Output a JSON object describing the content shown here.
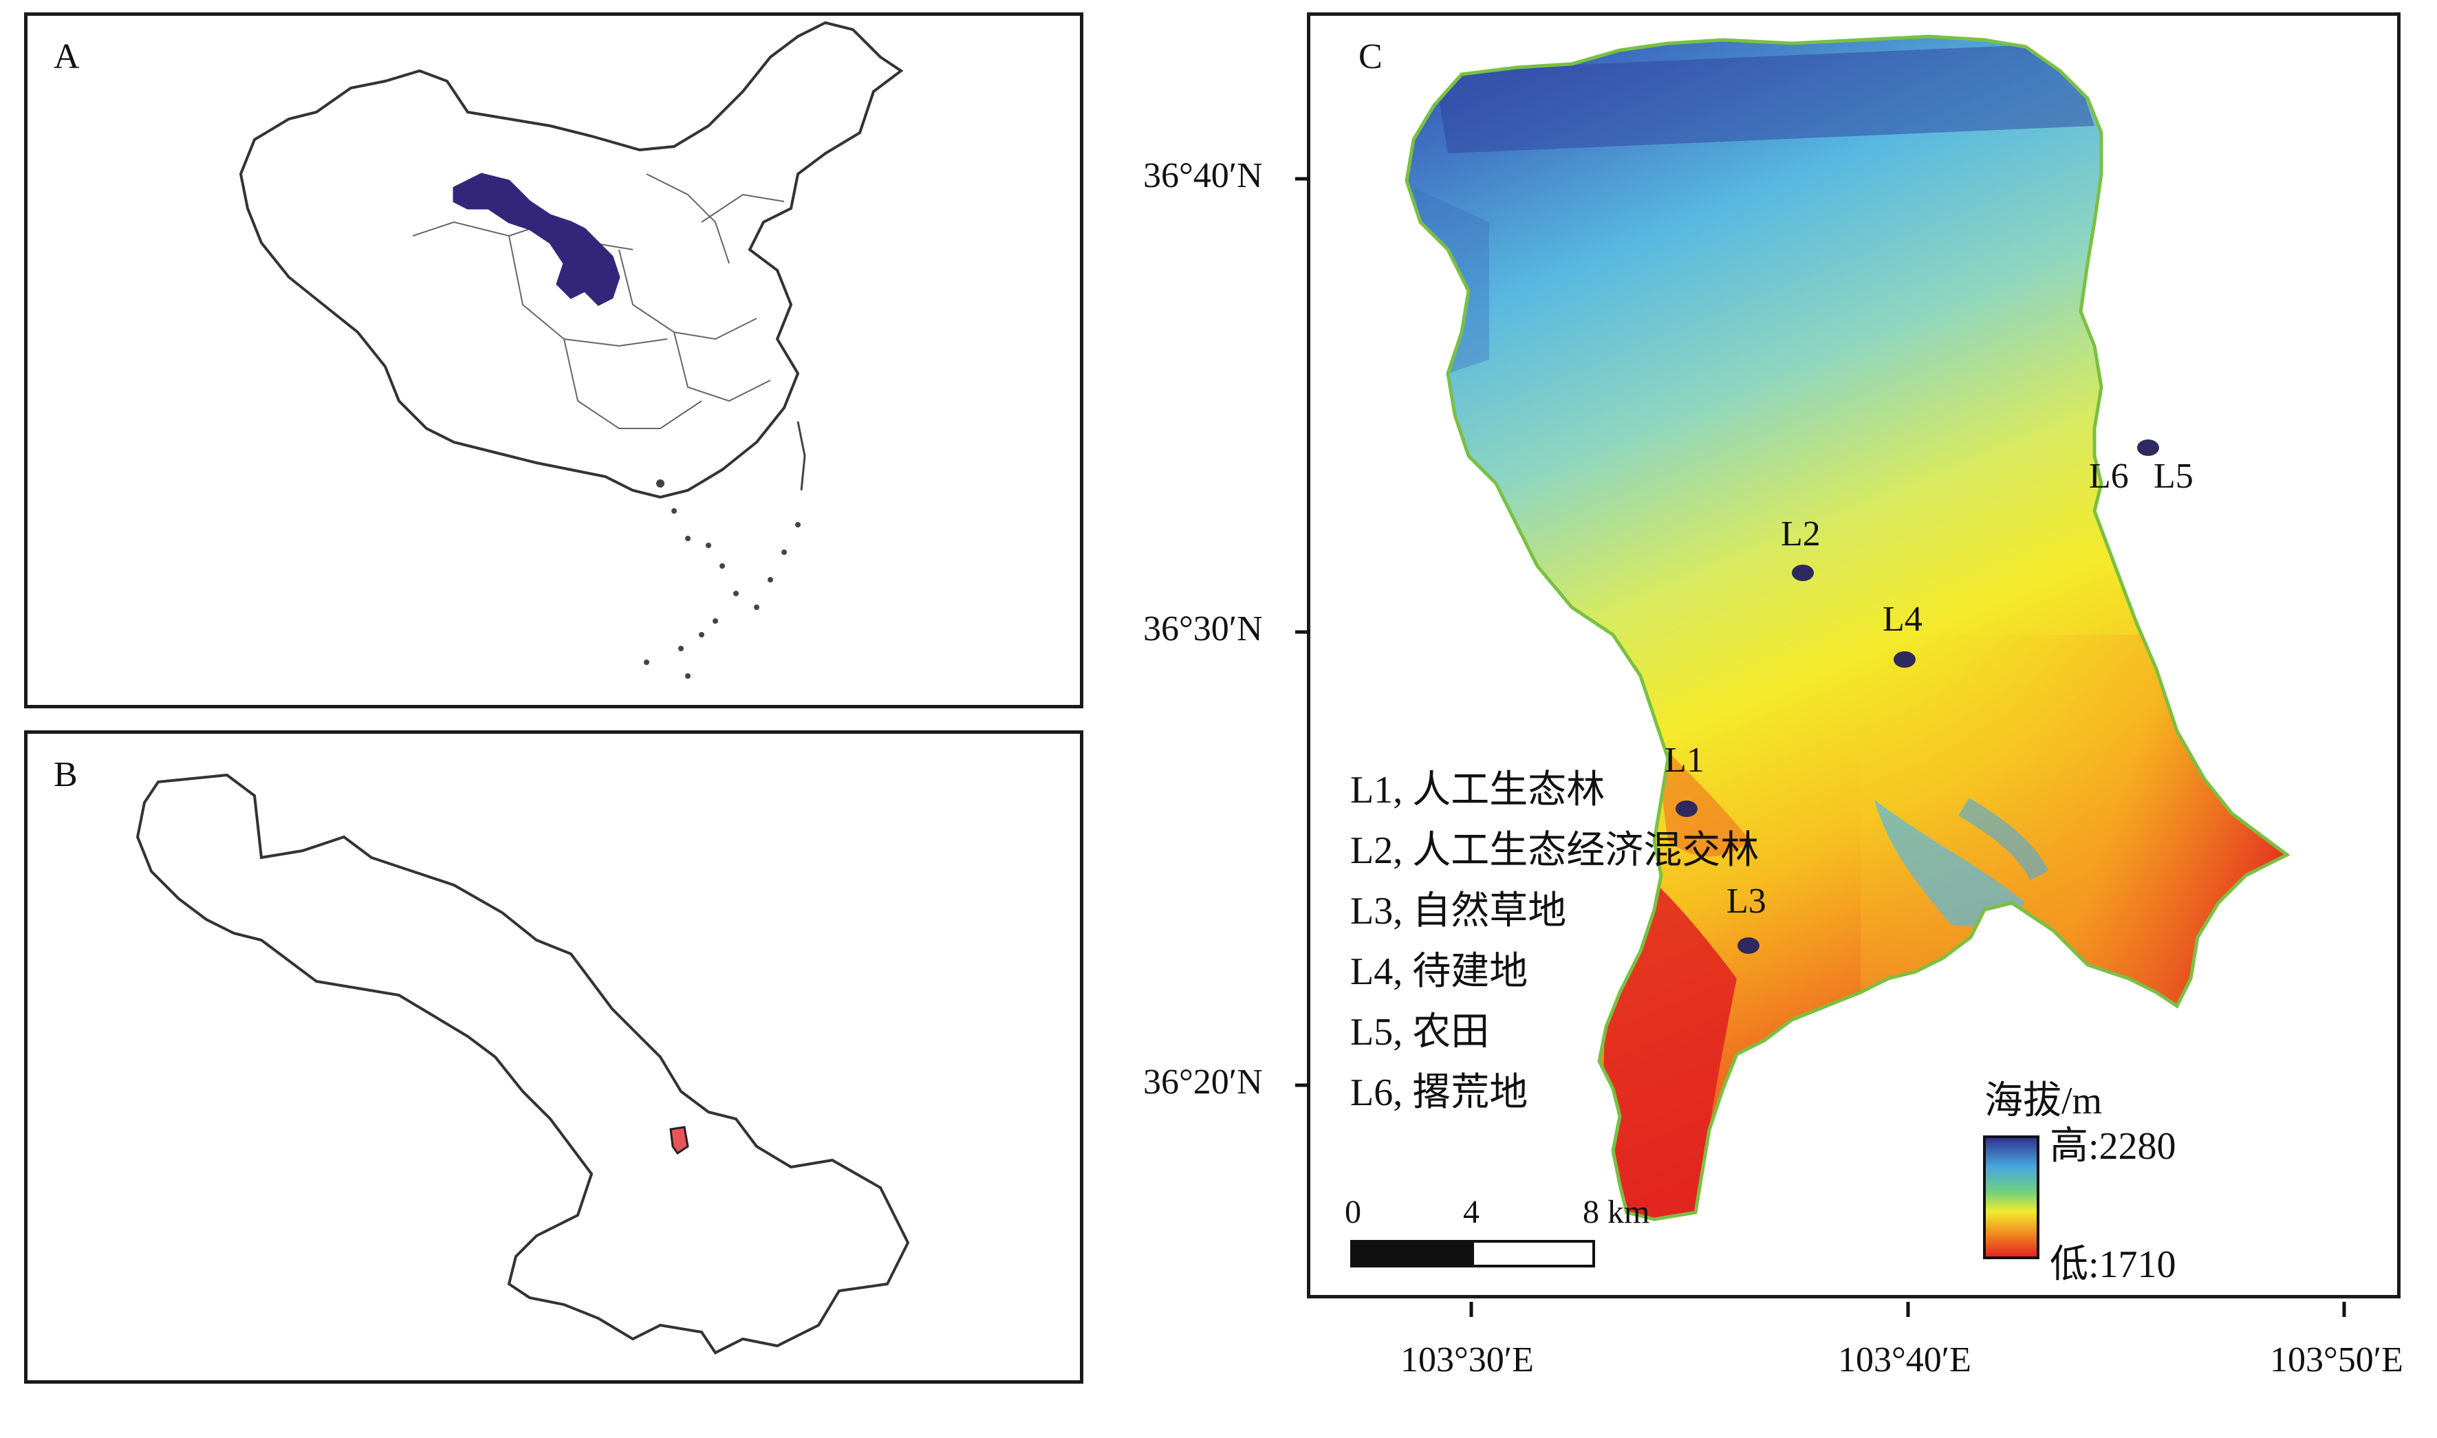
{
  "panels": {
    "a": {
      "letter": "A"
    },
    "b": {
      "letter": "B"
    },
    "c": {
      "letter": "C"
    }
  },
  "colors": {
    "region_fill": "#33267a",
    "site_fill": "#2f2a5e",
    "study_area_fill": "#e8545a",
    "outline": "#333333",
    "dem_high": "#2f3f9e",
    "dem_low": "#e02020"
  },
  "lat_labels": [
    "36°40′N",
    "36°30′N",
    "36°20′N"
  ],
  "lon_labels": [
    "103°30′E",
    "103°40′E",
    "103°50′E"
  ],
  "sites": [
    {
      "id": "L1",
      "label": "L1"
    },
    {
      "id": "L2",
      "label": "L2"
    },
    {
      "id": "L3",
      "label": "L3"
    },
    {
      "id": "L4",
      "label": "L4"
    },
    {
      "id": "L5",
      "label": "L5"
    },
    {
      "id": "L6",
      "label": "L6"
    }
  ],
  "legend": [
    "L1, 人工生态林",
    "L2, 人工生态经济混交林",
    "L3, 自然草地",
    "L4, 待建地",
    "L5, 农田",
    "L6, 撂荒地"
  ],
  "elevation_legend": {
    "title": "海拔/m",
    "high": "高:2280",
    "low": "低:1710"
  },
  "scale_bar": {
    "ticks": [
      "0",
      "4",
      "8 km"
    ]
  }
}
